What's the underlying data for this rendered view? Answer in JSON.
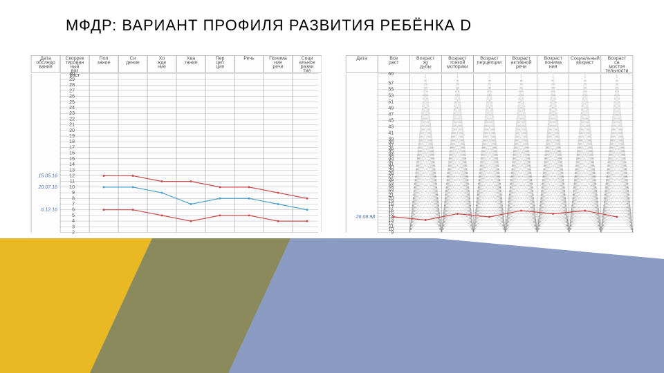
{
  "title": "МФДР: ВАРИАНТ ПРОФИЛЯ РАЗВИТИЯ РЕБЁНКА D",
  "chart_left": {
    "type": "line",
    "columns": [
      "Дата обследо-вания",
      "Скоррек-тирован-ный воз-раст",
      "Пол-зание",
      "Си-дение",
      "Хо-жде-ние",
      "Хва-тание",
      "Пер-цеп-ция",
      "Речь",
      "Понима-ние речи",
      "Соци-альное разви-тие"
    ],
    "y_values": [
      30,
      29,
      28,
      27,
      26,
      25,
      24,
      23,
      22,
      21,
      20,
      19,
      18,
      17,
      16,
      15,
      14,
      13,
      12,
      11,
      10,
      9,
      8,
      7,
      6,
      5,
      4,
      3,
      2
    ],
    "y_min": 2,
    "y_max": 30,
    "dates": [
      "15.05.16",
      "20.07.16",
      "6.12.16"
    ],
    "series": [
      {
        "color": "#c94a4a",
        "points": [
          12,
          12,
          11,
          11,
          10,
          10,
          9,
          8
        ]
      },
      {
        "color": "#4aa0c9",
        "points": [
          10,
          10,
          9,
          7,
          8,
          8,
          7,
          6
        ]
      },
      {
        "color": "#c94a4a",
        "points": [
          6,
          6,
          5,
          4,
          5,
          5,
          4,
          4
        ]
      }
    ],
    "grid_color": "#888888",
    "header_bg": "#ffffff",
    "line_width": 1.2
  },
  "chart_right": {
    "type": "line",
    "columns": [
      "Дата",
      "Воз-раст",
      "Возраст хо-дьбы",
      "Возраст тонкой моторики",
      "Возраст перцепции",
      "Возраст активной речи",
      "Возраст понима-ния",
      "Социальный возраст",
      "Возраст са-мостоя-тельности"
    ],
    "y_values": [
      60,
      57,
      55,
      53,
      51,
      49,
      47,
      45,
      43,
      41,
      39,
      38,
      37,
      36,
      35,
      34,
      33,
      32,
      31,
      30,
      29,
      28,
      27,
      26,
      25,
      24,
      23,
      22,
      21,
      20,
      19,
      18,
      17,
      16,
      15,
      14,
      13,
      12,
      11,
      10,
      9
    ],
    "y_min": 9,
    "y_max": 60,
    "date": "26.08.98",
    "series": [
      {
        "color": "#c94a4a",
        "points": [
          14,
          13,
          15,
          14,
          16,
          15,
          16,
          14
        ]
      }
    ],
    "diag_color": "#666666",
    "grid_color": "#888888",
    "line_width": 1.2
  },
  "bg": {
    "yellow": "#e8b923",
    "olive": "#8a8a5c",
    "blue": "#8a9cc2",
    "white": "#ffffff"
  }
}
